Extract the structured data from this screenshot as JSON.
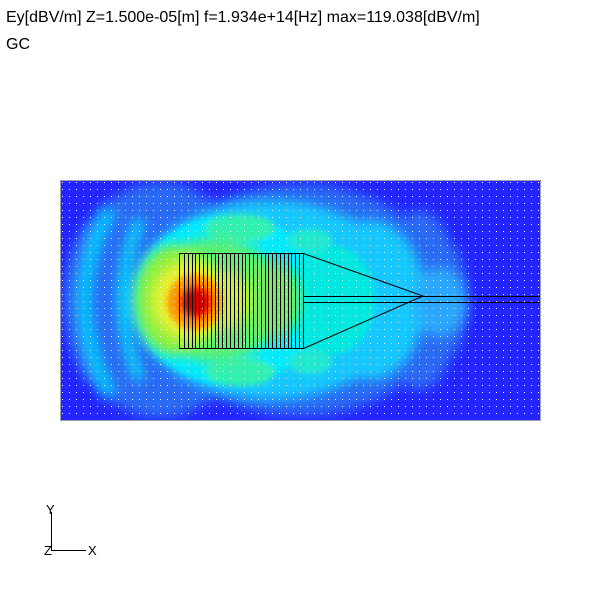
{
  "header": {
    "title": "Ey[dBV/m] Z=1.500e-05[m] f=1.934e+14[Hz] max=119.038[dBV/m]",
    "subtitle": "GC"
  },
  "axes_indicator": {
    "y_label": "Y",
    "x_label": "X",
    "z_label": "Z"
  },
  "colors": {
    "background": "#2020ff",
    "field_low": "#2a6bf4",
    "field_mid": "#00e0ff",
    "field_high": "#ffff00",
    "field_peak": "#d00000",
    "grid_dots": "#ffffff",
    "structure_lines": "#000000"
  },
  "field_map": {
    "quantity": "Ey",
    "unit": "dBV/m",
    "max_value": 119.038,
    "colormap": "jet",
    "grating_lines": 32
  }
}
